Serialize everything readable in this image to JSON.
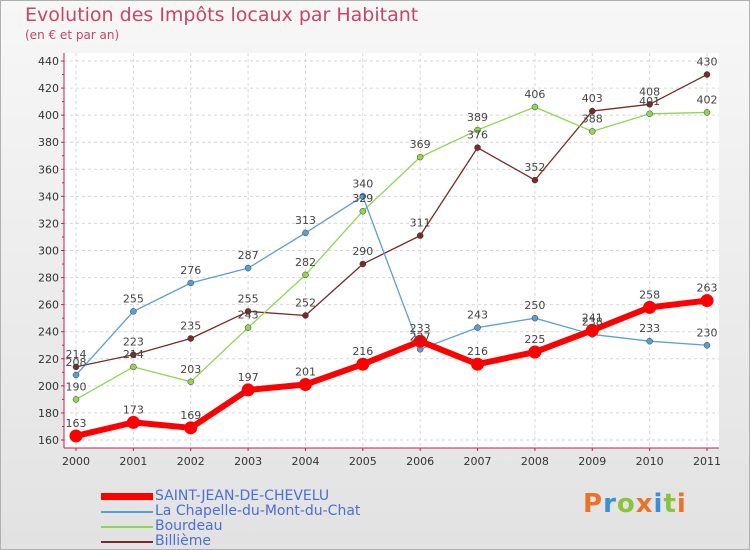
{
  "title": "Evolution des Impôts locaux par Habitant",
  "subtitle": "(en € et par an)",
  "logo": "Proxiti",
  "chart_data": {
    "type": "line",
    "title": "Evolution des Impôts locaux par Habitant",
    "ylabel": "(en € et par an)",
    "xlabel": "",
    "ylim": [
      160,
      440
    ],
    "yticks": [
      160,
      180,
      200,
      220,
      240,
      260,
      280,
      300,
      320,
      340,
      360,
      380,
      400,
      420,
      440
    ],
    "grid": true,
    "categories": [
      "2000",
      "2001",
      "2002",
      "2003",
      "2004",
      "2005",
      "2006",
      "2007",
      "2008",
      "2009",
      "2010",
      "2011"
    ],
    "series": [
      {
        "name": "SAINT-JEAN-DE-CHEVELU",
        "color": "#ff0000",
        "values": [
          163,
          173,
          169,
          197,
          201,
          216,
          233,
          216,
          225,
          241,
          258,
          263
        ]
      },
      {
        "name": "La Chapelle-du-Mont-du-Chat",
        "color": "#5a9fd4",
        "values": [
          208,
          255,
          276,
          287,
          313,
          340,
          227,
          243,
          250,
          238,
          233,
          230
        ]
      },
      {
        "name": "Bourdeau",
        "color": "#8ed84f",
        "values": [
          190,
          214,
          203,
          243,
          282,
          329,
          369,
          389,
          406,
          388,
          401,
          402
        ]
      },
      {
        "name": "Billième",
        "color": "#7a2a2a",
        "values": [
          214,
          223,
          235,
          255,
          252,
          290,
          311,
          376,
          352,
          403,
          408,
          430
        ]
      }
    ]
  }
}
